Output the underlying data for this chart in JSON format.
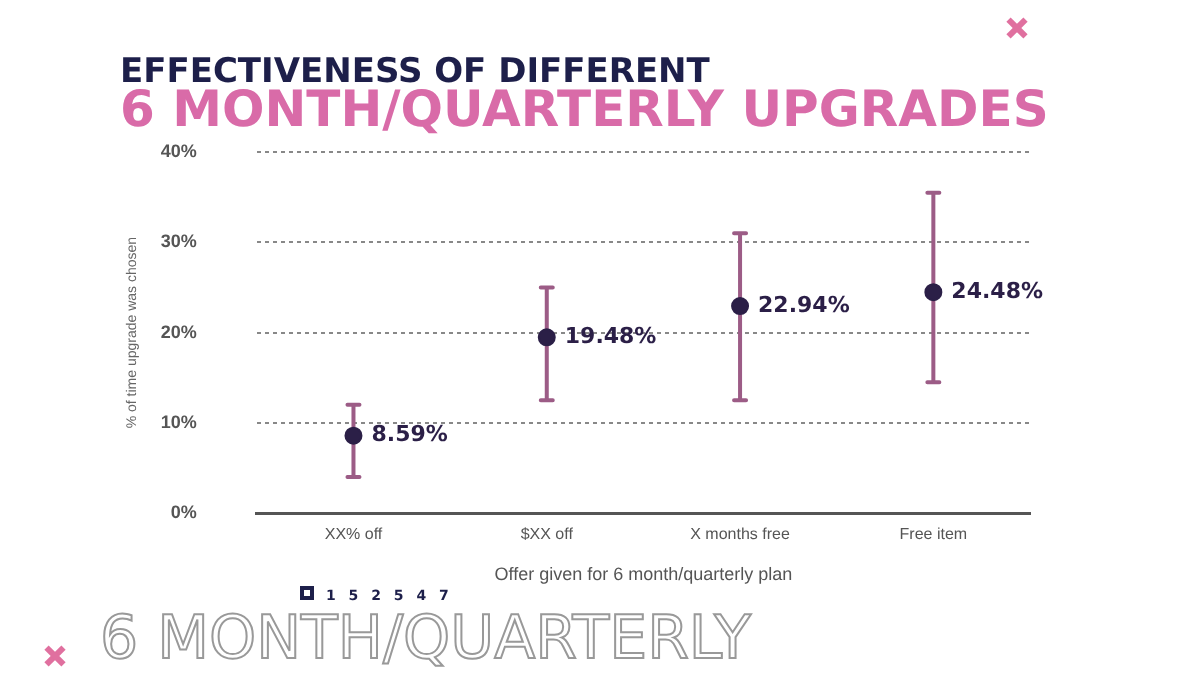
{
  "chart_data": {
    "type": "scatter",
    "title": "EFFECTIVENESS OF DIFFERENT",
    "subtitle": "6 MONTH/QUARTERLY UPGRADES",
    "xlabel": "Offer given for 6 month/quarterly plan",
    "ylabel": "% of time upgrade was chosen",
    "categories": [
      "XX% off",
      "$XX off",
      "X months free",
      "Free item"
    ],
    "values": [
      8.59,
      19.48,
      22.94,
      24.48
    ],
    "errors": [
      [
        4,
        12
      ],
      [
        12.5,
        25
      ],
      [
        12.5,
        31
      ],
      [
        14.5,
        35.5
      ]
    ],
    "color": "#2b1f47",
    "ylim": [
      0,
      40
    ],
    "yticks": [
      {
        "value": 0,
        "label": "0%"
      },
      {
        "value": 10,
        "label": "10%"
      },
      {
        "value": 20,
        "label": "20%"
      },
      {
        "value": 30,
        "label": "30%"
      },
      {
        "value": 40,
        "label": "40%"
      }
    ],
    "value_labels": [
      "8.59%",
      "19.48%",
      "22.94%",
      "24.48%"
    ],
    "grid": "y",
    "marker": "circle",
    "annotations": [
      "1 5 2 5 4 7",
      "6 MONTH/QUARTERLY"
    ]
  }
}
